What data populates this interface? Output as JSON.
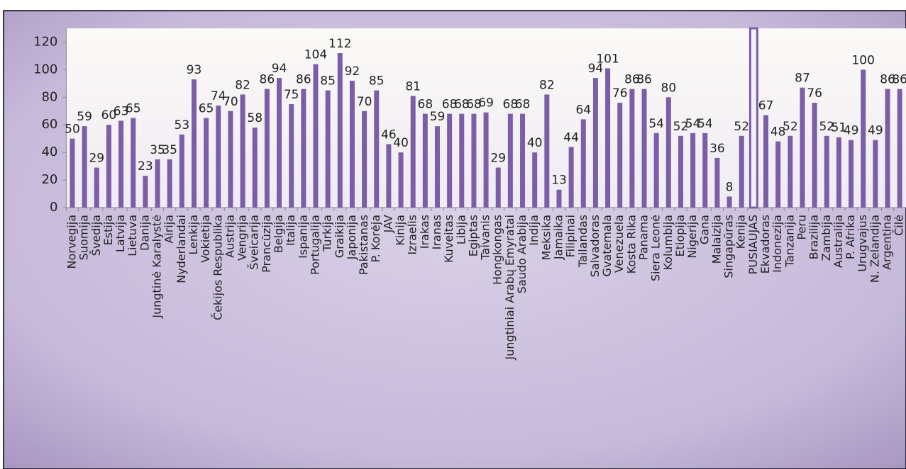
{
  "chart_data": {
    "type": "bar",
    "categories": [
      "Norvegija",
      "Suomija",
      "Švedija",
      "Estija",
      "Latvija",
      "Lietuva",
      "Danija",
      "Jungtinė Karalystė",
      "Airija",
      "Nyderlandai",
      "Lenkija",
      "Vokietija",
      "Čekijos Respublika",
      "Austrija",
      "Vengrija",
      "Šveicarija",
      "Prancūzija",
      "Belgija",
      "Italija",
      "Ispanija",
      "Portugalija",
      "Turkija",
      "Graikija",
      "Japonija",
      "Pakistanas",
      "P. Korėja",
      "JAV",
      "Kinija",
      "Izraelis",
      "Irakas",
      "Iranas",
      "Kuveitas",
      "Libija",
      "Egiptas",
      "Taivanis",
      "Hongkongas",
      "Jungtiniai Arabų Emyratai",
      "Saudo Arabija",
      "Indija",
      "Meksika",
      "Jamaika",
      "Filipinai",
      "Tailandas",
      "Salvadoras",
      "Gvatemala",
      "Venezuela",
      "Kosta Rika",
      "Panama",
      "Siera Leonė",
      "Kolumbija",
      "Etiopija",
      "Nigerija",
      "Gana",
      "Malaizija",
      "Singapūras",
      "Kenija",
      "PUSIAUJAS",
      "Ekvadoras",
      "Indonezija",
      "Tanzanija",
      "Peru",
      "Brazilija",
      "Zambija",
      "Australija",
      "P. Afrika",
      "Urugvajus",
      "N. Zelandija",
      "Argentina",
      "Čilė"
    ],
    "values": [
      50,
      59,
      29,
      60,
      63,
      65,
      23,
      35,
      35,
      53,
      93,
      65,
      74,
      70,
      82,
      58,
      86,
      94,
      75,
      86,
      104,
      85,
      112,
      92,
      70,
      85,
      46,
      40,
      81,
      68,
      59,
      68,
      68,
      68,
      69,
      29,
      68,
      68,
      40,
      82,
      13,
      44,
      64,
      94,
      101,
      76,
      86,
      86,
      54,
      80,
      52,
      54,
      54,
      36,
      8,
      52,
      130,
      67,
      48,
      52,
      87,
      76,
      52,
      51,
      49,
      100,
      49,
      86,
      86
    ],
    "color": "#7b5ea7",
    "highlight_index": 56,
    "highlight_color": "#f4f0fa",
    "ylim": [
      0,
      130
    ],
    "yticks": [
      0,
      20,
      40,
      60,
      80,
      100,
      120
    ]
  }
}
